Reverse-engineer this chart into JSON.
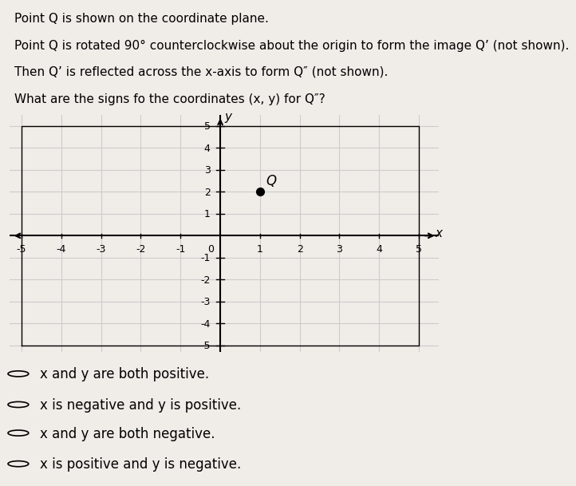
{
  "background_color": "#f0ece8",
  "title_lines": [
    "Point Q is shown on the coordinate plane.",
    "Point Q is rotated 90° counterclockwise about the origin to form the image Q’ (not shown).",
    "Then Q’ is reflected across the x-axis to form Q″ (not shown).",
    "What are the signs fo the coordinates (x, y) for Q″?"
  ],
  "grid_xlim": [
    -5,
    5
  ],
  "grid_ylim": [
    -5,
    5
  ],
  "point_Q": [
    1,
    2
  ],
  "point_label": "Q",
  "choices": [
    "x and y are both positive.",
    "x is negative and y is positive.",
    "x and y are both negative.",
    "x is positive and y is negative."
  ],
  "choice_x_vars": [
    "X",
    "X",
    "X",
    "X"
  ],
  "choice_y_vars": [
    "Y",
    "Y",
    "Y",
    "Y"
  ],
  "point_color": "#000000",
  "grid_color": "#cccccc",
  "axis_color": "#000000",
  "tick_label_fontsize": 9,
  "label_fontsize": 11,
  "choice_fontsize": 12,
  "title_fontsize": 11
}
